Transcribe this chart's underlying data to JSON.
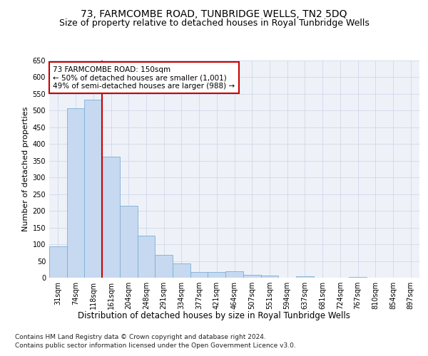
{
  "title_line1": "73, FARMCOMBE ROAD, TUNBRIDGE WELLS, TN2 5DQ",
  "title_line2": "Size of property relative to detached houses in Royal Tunbridge Wells",
  "xlabel": "Distribution of detached houses by size in Royal Tunbridge Wells",
  "ylabel": "Number of detached properties",
  "footnote1": "Contains HM Land Registry data © Crown copyright and database right 2024.",
  "footnote2": "Contains public sector information licensed under the Open Government Licence v3.0.",
  "bar_labels": [
    "31sqm",
    "74sqm",
    "118sqm",
    "161sqm",
    "204sqm",
    "248sqm",
    "291sqm",
    "334sqm",
    "377sqm",
    "421sqm",
    "464sqm",
    "507sqm",
    "551sqm",
    "594sqm",
    "637sqm",
    "681sqm",
    "724sqm",
    "767sqm",
    "810sqm",
    "854sqm",
    "897sqm"
  ],
  "bar_values": [
    93,
    507,
    533,
    362,
    216,
    125,
    68,
    43,
    17,
    18,
    20,
    9,
    7,
    0,
    4,
    0,
    0,
    2,
    0,
    0,
    1
  ],
  "bar_color": "#c6d9f0",
  "bar_edge_color": "#7bafd4",
  "grid_color": "#d0d8e8",
  "background_color": "#eef2f8",
  "vline_x": 2.5,
  "annotation_text": "73 FARMCOMBE ROAD: 150sqm\n← 50% of detached houses are smaller (1,001)\n49% of semi-detached houses are larger (988) →",
  "annotation_box_color": "#ffffff",
  "annotation_box_edge_color": "#cc0000",
  "annotation_text_fontsize": 7.5,
  "ylim": [
    0,
    650
  ],
  "yticks": [
    0,
    50,
    100,
    150,
    200,
    250,
    300,
    350,
    400,
    450,
    500,
    550,
    600,
    650
  ],
  "title_fontsize1": 10,
  "title_fontsize2": 9,
  "xlabel_fontsize": 8.5,
  "ylabel_fontsize": 8,
  "tick_fontsize": 7,
  "footnote_fontsize": 6.5
}
